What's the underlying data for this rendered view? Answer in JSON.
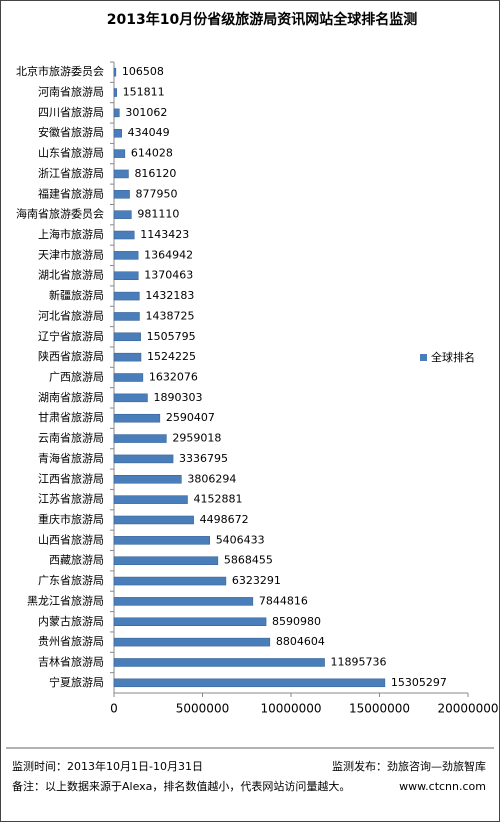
{
  "chart_data": {
    "type": "bar",
    "orientation": "horizontal",
    "title": "2013年10月份省级旅游局资讯网站全球排名监测",
    "categories": [
      "北京市旅游委员会",
      "河南省旅游局",
      "四川省旅游局",
      "安徽省旅游局",
      "山东省旅游局",
      "浙江省旅游局",
      "福建省旅游局",
      "海南省旅游委员会",
      "上海市旅游局",
      "天津市旅游局",
      "湖北省旅游局",
      "新疆旅游局",
      "河北省旅游局",
      "辽宁省旅游局",
      "陕西省旅游局",
      "广西旅游局",
      "湖南省旅游局",
      "甘肃省旅游局",
      "云南省旅游局",
      "青海省旅游局",
      "江西省旅游局",
      "江苏省旅游局",
      "重庆市旅游局",
      "山西省旅游局",
      "西藏旅游局",
      "广东省旅游局",
      "黑龙江省旅游局",
      "内蒙古旅游局",
      "贵州省旅游局",
      "吉林省旅游局",
      "宁夏旅游局"
    ],
    "series": [
      {
        "name": "全球排名",
        "color": "#4a7ebb",
        "values": [
          106508,
          151811,
          301062,
          434049,
          614028,
          816120,
          877950,
          981110,
          1143423,
          1364942,
          1370463,
          1432183,
          1438725,
          1505795,
          1524225,
          1632076,
          1890303,
          2590407,
          2959018,
          3336795,
          3806294,
          4152881,
          4498672,
          5406433,
          5868455,
          6323291,
          7844816,
          8590980,
          8804604,
          11895736,
          15305297
        ]
      }
    ],
    "xlim": [
      0,
      20000000
    ],
    "xticks": [
      0,
      5000000,
      10000000,
      15000000,
      20000000
    ],
    "legend": "right"
  },
  "footer": {
    "time": "监测时间：2013年10月1日-10月31日",
    "publisher": "监测发布：劲旅咨询—劲旅智库",
    "note": "备注：以上数据来源于Alexa，排名数值越小，代表网站访问量越大。",
    "site": "www.ctcnn.com"
  }
}
